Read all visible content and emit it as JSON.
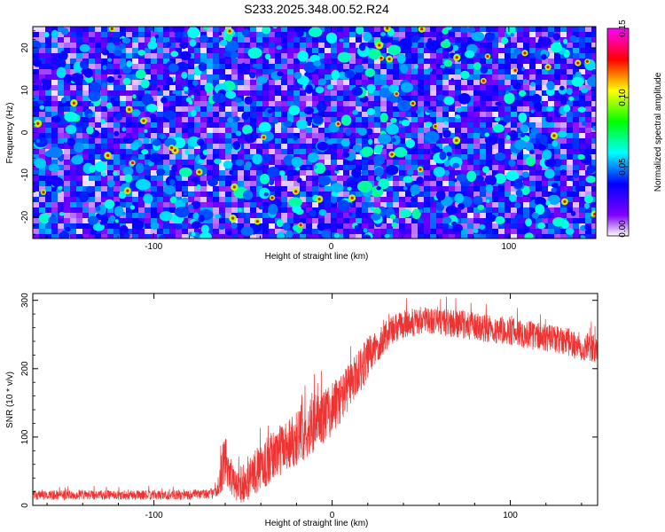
{
  "figure_title": "S233.2025.348.00.52.R24",
  "chart_data": [
    {
      "type": "heatmap",
      "title": "S233.2025.348.00.52.R24",
      "xlabel": "Height of straight line (km)",
      "ylabel": "Frequency (Hz)",
      "xlim": [
        -168,
        149
      ],
      "ylim": [
        -25,
        25
      ],
      "x_ticks": [
        -100,
        0,
        100
      ],
      "x_tick_labels": [
        "-100",
        "0",
        "100"
      ],
      "y_ticks": [
        -20,
        -10,
        0,
        10,
        20
      ],
      "y_tick_labels": [
        "-20",
        "-10",
        "0",
        "10",
        "20"
      ],
      "colorbar": {
        "label": "Normalized spectral amplitude",
        "range": [
          0,
          0.15
        ],
        "ticks": [
          0,
          0.05,
          0.1,
          0.15
        ],
        "tick_labels": [
          "0.00",
          "0.05",
          "0.10",
          "0.15"
        ],
        "colormap": [
          "#ffffff",
          "#8000ff",
          "#0000ff",
          "#00ffff",
          "#00ff00",
          "#ffff00",
          "#ff0000",
          "#ff00ff"
        ]
      },
      "description_values": {
        "background_level": 0.03,
        "typical_blob_level": 0.06,
        "peak_level": 0.13
      }
    },
    {
      "type": "line",
      "xlabel": "Height of straight line (km)",
      "ylabel": "SNR (10 * v/v)",
      "xlim": [
        -168,
        149
      ],
      "ylim": [
        0,
        310
      ],
      "x_ticks": [
        -100,
        0,
        100
      ],
      "x_tick_labels": [
        "-100",
        "0",
        "100"
      ],
      "y_ticks": [
        0,
        100,
        200,
        300
      ],
      "y_tick_labels": [
        "0",
        "100",
        "200",
        "300"
      ],
      "series": [
        {
          "name": "SNR",
          "color": "#ee3333",
          "x": [
            -168,
            -140,
            -100,
            -80,
            -65,
            -60,
            -55,
            -50,
            -45,
            -40,
            -30,
            -20,
            -10,
            0,
            10,
            20,
            30,
            40,
            50,
            60,
            70,
            80,
            90,
            100,
            110,
            120,
            130,
            140,
            149
          ],
          "mean": [
            15,
            15,
            15,
            15,
            18,
            70,
            30,
            25,
            45,
            55,
            80,
            100,
            120,
            140,
            175,
            215,
            250,
            265,
            270,
            270,
            265,
            262,
            258,
            255,
            250,
            245,
            240,
            232,
            228
          ],
          "noise": [
            10,
            10,
            10,
            10,
            12,
            60,
            30,
            35,
            45,
            50,
            55,
            60,
            60,
            55,
            50,
            45,
            35,
            30,
            30,
            30,
            30,
            30,
            30,
            30,
            30,
            30,
            30,
            30,
            30
          ]
        }
      ]
    }
  ]
}
